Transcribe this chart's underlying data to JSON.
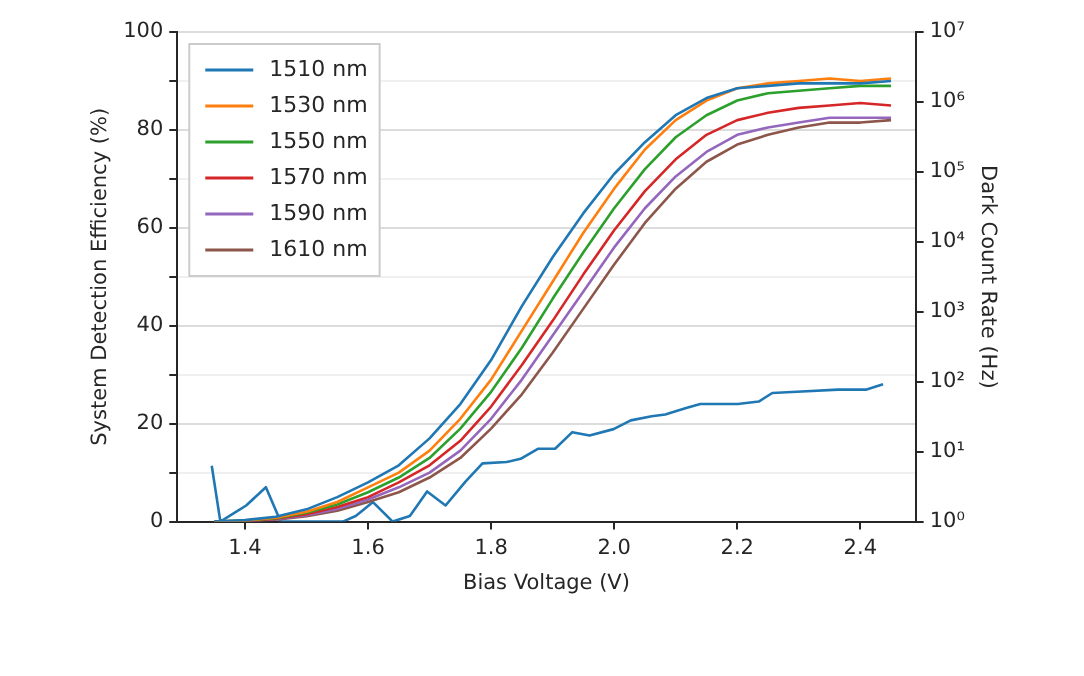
{
  "chart_data": {
    "type": "line",
    "xlabel": "Bias Voltage (V)",
    "ylabel": "System Detection Efficiency (%)",
    "y2label": "Dark Count Rate (Hz)",
    "xlim": [
      1.29,
      2.49
    ],
    "xticks": [
      1.4,
      1.6,
      1.8,
      {
        "value": 2,
        "label": "2.0"
      },
      2.2,
      2.4
    ],
    "ylim": [
      0,
      100
    ],
    "yticks": [
      0,
      {
        "value": 10,
        "label": null
      },
      20,
      {
        "value": 30,
        "label": null
      },
      40,
      {
        "value": 50,
        "label": null
      },
      60,
      {
        "value": 70,
        "label": null
      },
      80,
      {
        "value": 90,
        "label": null
      },
      100
    ],
    "y2lim": [
      1,
      10000000
    ],
    "y2ticks": [
      {
        "value": 1,
        "label": "10⁰"
      },
      {
        "value": 10,
        "label": "10¹"
      },
      {
        "value": 100,
        "label": "10²"
      },
      {
        "value": 1000,
        "label": "10³"
      },
      {
        "value": 10000,
        "label": "10⁴"
      },
      {
        "value": 100000,
        "label": "10⁵"
      },
      {
        "value": 1000000,
        "label": "10⁶"
      },
      {
        "value": 10000000,
        "label": "10⁷"
      }
    ],
    "log": "y2",
    "grid": "y",
    "legend": "top left",
    "marker": "none",
    "line_style": "solid",
    "x": [
      1.35,
      1.4,
      1.45,
      1.5,
      1.55,
      1.6,
      1.65,
      1.7,
      1.75,
      1.8,
      1.85,
      1.9,
      1.95,
      2.0,
      2.05,
      2.1,
      2.15,
      2.2,
      2.25,
      2.3,
      2.35,
      2.4,
      2.45
    ],
    "series": [
      {
        "name": "1510 nm",
        "color": "#1f77b4",
        "values": [
          0,
          0.3,
          1,
          2.5,
          5,
          8,
          11.5,
          17,
          24,
          33,
          44,
          54,
          63,
          71,
          77.5,
          83,
          86.5,
          88.5,
          89,
          89.5,
          89.5,
          89.5,
          90
        ]
      },
      {
        "name": "1530 nm",
        "color": "#ff7f0e",
        "values": [
          0,
          0.2,
          0.8,
          2,
          4,
          7,
          10,
          14.5,
          21,
          29,
          39,
          49,
          59,
          68,
          76,
          82,
          86,
          88.5,
          89.5,
          90,
          90.5,
          90,
          90.5
        ]
      },
      {
        "name": "1550 nm",
        "color": "#2ca02c",
        "values": [
          0,
          0.2,
          0.7,
          1.8,
          3.5,
          6,
          9,
          13,
          19,
          26.5,
          35.5,
          45.5,
          55,
          64,
          72,
          78.5,
          83,
          86,
          87.5,
          88,
          88.5,
          89,
          89
        ]
      },
      {
        "name": "1570 nm",
        "color": "#d62728",
        "values": [
          0,
          0.1,
          0.6,
          1.5,
          3,
          5,
          8,
          11.5,
          16.5,
          23.5,
          32,
          41,
          50.5,
          59.5,
          67.5,
          74,
          79,
          82,
          83.5,
          84.5,
          85,
          85.5,
          85
        ]
      },
      {
        "name": "1590 nm",
        "color": "#9467bd",
        "values": [
          0,
          0.1,
          0.5,
          1.3,
          2.6,
          4.5,
          7,
          10,
          14.5,
          21,
          29,
          38,
          47,
          56,
          64,
          70.5,
          75.5,
          79,
          80.5,
          81.5,
          82.5,
          82.5,
          82.5
        ]
      },
      {
        "name": "1610 nm",
        "color": "#8c564b",
        "values": [
          0,
          0.1,
          0.4,
          1.1,
          2.2,
          4,
          6,
          9,
          13,
          19,
          26,
          34.5,
          43.5,
          52.5,
          61,
          68,
          73.5,
          77,
          79,
          80.5,
          81.5,
          81.5,
          82
        ]
      },
      {
        "color": "#1f77b4",
        "axis": "y2",
        "x": [
          1.346,
          1.36,
          1.402,
          1.434,
          1.458,
          1.559,
          1.58,
          1.608,
          1.64,
          1.668,
          1.696,
          1.726,
          1.758,
          1.786,
          1.825,
          1.848,
          1.876,
          1.904,
          1.932,
          1.96,
          1.999,
          2.027,
          2.061,
          2.083,
          2.117,
          2.14,
          2.201,
          2.235,
          2.257,
          2.297,
          2.364,
          2.409,
          2.437
        ],
        "values": [
          6.3,
          1,
          1.7,
          3.1,
          1,
          1,
          1.2,
          1.9,
          1,
          1.2,
          2.7,
          1.7,
          3.7,
          6.8,
          7.1,
          7.9,
          11,
          11,
          19,
          17,
          21,
          28,
          32,
          34,
          42,
          48,
          48,
          52,
          69,
          72,
          77,
          77,
          92
        ]
      }
    ]
  }
}
